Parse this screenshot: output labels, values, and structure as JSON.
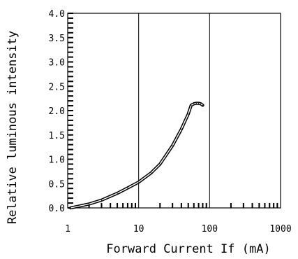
{
  "chart_data": {
    "type": "line",
    "xlabel": "Forward Current If (mA)",
    "ylabel": "Relative luminous intensity",
    "x_scale": "log",
    "xlim": [
      1,
      1000
    ],
    "ylim": [
      0,
      4.0
    ],
    "x_ticks": [
      1,
      10,
      100,
      1000
    ],
    "x_tick_labels": [
      "1",
      "10",
      "100",
      "1000"
    ],
    "y_ticks": [
      0,
      0.5,
      1.0,
      1.5,
      2.0,
      2.5,
      3.0,
      3.5,
      4.0
    ],
    "y_tick_labels": [
      "0.0",
      "0.5",
      "1.0",
      "1.5",
      "2.0",
      "2.5",
      "3.0",
      "3.5",
      "4.0"
    ],
    "grid": true,
    "series": [
      {
        "x": [
          1.1,
          2,
          3,
          5,
          7,
          10,
          15,
          20,
          30,
          40,
          50,
          55,
          60,
          65,
          70,
          75,
          80
        ],
        "y": [
          0.0,
          0.08,
          0.16,
          0.3,
          0.41,
          0.53,
          0.72,
          0.9,
          1.28,
          1.62,
          1.93,
          2.11,
          2.14,
          2.15,
          2.15,
          2.14,
          2.11
        ]
      }
    ],
    "colors": {
      "line": "#000000",
      "background": "#ffffff"
    }
  }
}
